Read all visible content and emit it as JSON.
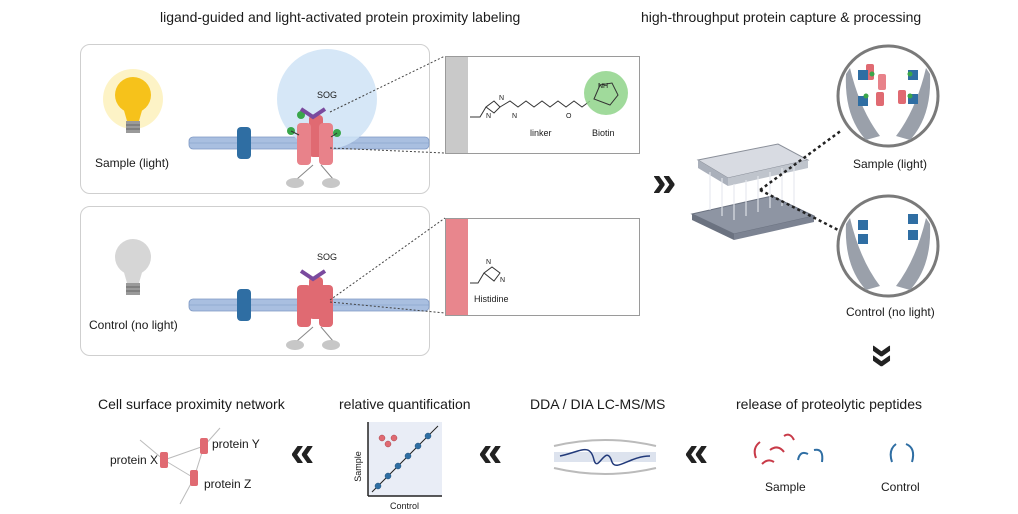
{
  "titles": {
    "labeling": "ligand-guided and light-activated protein proximity labeling",
    "capture": "high-throughput protein capture & processing",
    "network": "Cell surface proximity network",
    "quant": "relative quantification",
    "ms": "DDA / DIA LC-MS/MS",
    "release": "release of proteolytic peptides"
  },
  "sample_panel": {
    "label": "Sample (light)",
    "sog": "SOG"
  },
  "control_panel": {
    "label": "Control (no light)",
    "sog": "SOG"
  },
  "chem_sample": {
    "linker": "linker",
    "biotin": "Biotin",
    "n1": "N",
    "n2": "N",
    "n3": "N",
    "nh": "NH",
    "o": "O"
  },
  "chem_control": {
    "histidine": "Histidine",
    "n1": "N",
    "n2": "N"
  },
  "capture_labels": {
    "sample": "Sample (light)",
    "control": "Control (no light)"
  },
  "peptides": {
    "sample": "Sample",
    "control": "Control"
  },
  "scatter": {
    "xlabel": "Control",
    "ylabel": "Sample"
  },
  "network": {
    "x": "protein X",
    "y": "protein Y",
    "z": "protein Z"
  },
  "arrows": {
    "double_right": "»",
    "double_left": "«",
    "double_down": "»"
  },
  "colors": {
    "membrane": "#a9bfe0",
    "protein_red": "#e06a72",
    "protein_blue": "#2f6ea3",
    "sog_purple": "#7a4a9e",
    "light_halo": "#cfe3f6",
    "biotin_green": "#8fd48a",
    "bulb_on": "#f6c21b",
    "bulb_off": "#d6d6d6"
  }
}
